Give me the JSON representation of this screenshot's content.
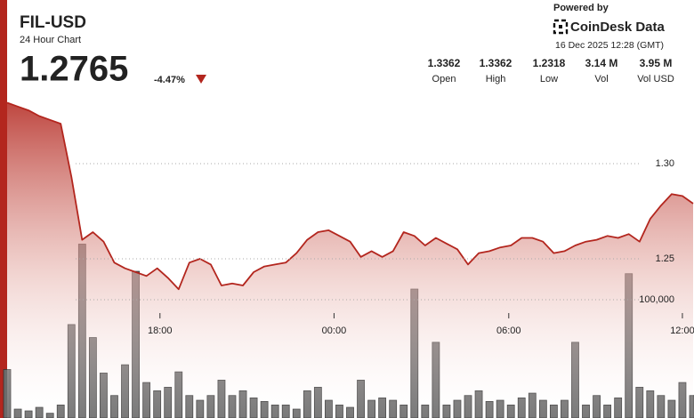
{
  "chart_data": {
    "type": "line",
    "title": "FIL-USD",
    "subtitle": "24 Hour Chart",
    "last_price": "1.2765",
    "change": "-4.47%",
    "powered_by": "Powered by",
    "brand": "CoinDesk Data",
    "timestamp": "16 Dec 2025 12:28 (GMT)",
    "stats": [
      {
        "value": "1.3362",
        "label": "Open"
      },
      {
        "value": "1.3362",
        "label": "High"
      },
      {
        "value": "1.2318",
        "label": "Low"
      },
      {
        "value": "3.14 M",
        "label": "Vol"
      },
      {
        "value": "3.95 M",
        "label": "Vol USD"
      }
    ],
    "xlim": [
      0,
      64
    ],
    "xticks": [
      {
        "value": 14.26,
        "label": "18:00"
      },
      {
        "value": 30.5,
        "label": "00:00"
      },
      {
        "value": 46.8,
        "label": "06:00"
      },
      {
        "value": 63.0,
        "label": "12:00"
      }
    ],
    "ylim": [
      1.17,
      1.34
    ],
    "yticks": [
      1.25,
      {
        "value": 1.3,
        "label": "1.30"
      }
    ],
    "y2lim": [
      0,
      250000
    ],
    "y2ticks": [
      {
        "value": 100000,
        "label": "100,000"
      }
    ],
    "grid": true,
    "series": [
      {
        "color": "#b3261e",
        "values": [
          1.332,
          1.33,
          1.328,
          1.325,
          1.323,
          1.321,
          1.293,
          1.26,
          1.264,
          1.259,
          1.248,
          1.245,
          1.243,
          1.241,
          1.245,
          1.24,
          1.234,
          1.248,
          1.25,
          1.247,
          1.236,
          1.237,
          1.236,
          1.243,
          1.246,
          1.247,
          1.248,
          1.253,
          1.26,
          1.264,
          1.265,
          1.262,
          1.259,
          1.251,
          1.254,
          1.251,
          1.254,
          1.264,
          1.262,
          1.257,
          1.261,
          1.258,
          1.255,
          1.247,
          1.253,
          1.254,
          1.256,
          1.257,
          1.261,
          1.261,
          1.259,
          1.253,
          1.254,
          1.257,
          1.259,
          1.26,
          1.262,
          1.261,
          1.263,
          1.259,
          1.271,
          1.278,
          1.284,
          1.283,
          1.279
        ]
      },
      {
        "type": "bar",
        "axis": "y2",
        "color": "#6b6b6b",
        "values": [
          41000,
          7500,
          6000,
          9000,
          4000,
          11000,
          79000,
          147000,
          68000,
          38000,
          19000,
          45000,
          124000,
          30000,
          23000,
          26000,
          39000,
          19000,
          15000,
          19000,
          32000,
          19000,
          23000,
          17000,
          14000,
          11000,
          11000,
          7500,
          23000,
          26000,
          15000,
          11000,
          9000,
          32000,
          15000,
          17000,
          15000,
          11000,
          109000,
          11000,
          64000,
          11000,
          15000,
          19000,
          23000,
          14000,
          15000,
          11000,
          17000,
          21000,
          15000,
          11000,
          15000,
          64000,
          11000,
          19000,
          11000,
          17000,
          122000,
          26000,
          23000,
          19000,
          15000,
          30000,
          19000
        ]
      }
    ]
  }
}
